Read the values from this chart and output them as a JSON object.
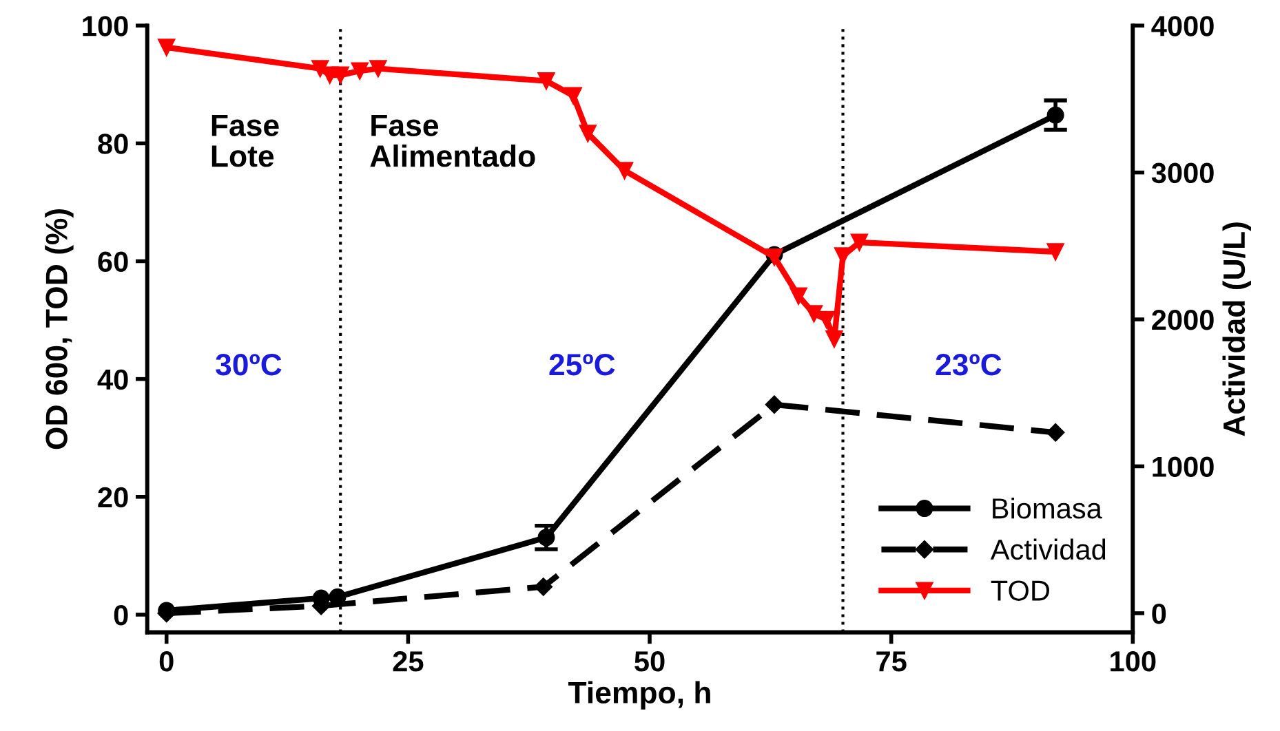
{
  "chart_data": {
    "type": "line",
    "xlabel": "Tiempo, h",
    "ylabel": "OD 600, TOD (%)",
    "y2label": "Actividad (U/L)",
    "xlim": [
      -2,
      100
    ],
    "xticks": [
      0,
      25,
      50,
      75,
      100
    ],
    "ylim": [
      -3,
      100
    ],
    "yticks": [
      0,
      20,
      40,
      60,
      80,
      100
    ],
    "y2lim": [
      -130,
      4000
    ],
    "y2ticks": [
      0,
      1000,
      2000,
      3000,
      4000
    ],
    "grid": false,
    "legend": "bottom right",
    "series": [
      {
        "name": "Biomasa",
        "color": "#000000",
        "marker": "circle",
        "line_style": "solid",
        "x": [
          0,
          16,
          17.7,
          39.3,
          62.9,
          92
        ],
        "values": [
          0.7,
          2.8,
          3,
          13.1,
          61.1,
          84.8
        ],
        "errors": [
          null,
          null,
          null,
          2,
          null,
          2.5
        ]
      },
      {
        "name": "Actividad",
        "color": "#000000",
        "marker": "diamond",
        "line_style": "dashed",
        "axis": "y2",
        "x": [
          0,
          16,
          39,
          62.9,
          92
        ],
        "values": [
          0,
          50,
          180,
          1420,
          1230
        ]
      },
      {
        "name": "TOD",
        "color": "#ff0000",
        "marker": "triangle",
        "line_style": "solid",
        "x": [
          0,
          15.9,
          16.9,
          18,
          20,
          21.9,
          39.3,
          42.1,
          43.6,
          47.4,
          62.9,
          65.4,
          67,
          68.3,
          69.1,
          70,
          71.7,
          92
        ],
        "values": [
          96.3,
          92.7,
          91.6,
          91.6,
          92.3,
          92.7,
          90.6,
          88.1,
          81.7,
          75.4,
          60.7,
          54.1,
          51.1,
          50.1,
          46.8,
          60.9,
          63.2,
          61.6
        ]
      }
    ],
    "ref_lines": [
      {
        "axis": "x",
        "value": 18,
        "color": "#000000",
        "line_style": "dotted"
      },
      {
        "axis": "x",
        "value": 70,
        "color": "#000000",
        "line_style": "dotted"
      }
    ],
    "annotations": [
      "Fase\nLote",
      "Fase\nAlimentado",
      "30ºC",
      "25ºC",
      "23ºC"
    ]
  }
}
